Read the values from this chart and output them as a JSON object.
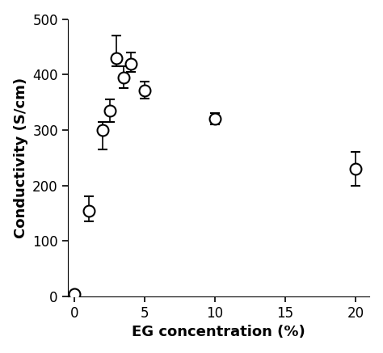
{
  "x": [
    0,
    1,
    2,
    2.5,
    3,
    3.5,
    4,
    5,
    10,
    20
  ],
  "y": [
    5,
    155,
    300,
    335,
    430,
    395,
    420,
    372,
    320,
    230
  ],
  "yerr_low": [
    0,
    20,
    35,
    20,
    15,
    20,
    15,
    15,
    10,
    30
  ],
  "yerr_high": [
    0,
    25,
    15,
    20,
    40,
    20,
    20,
    15,
    10,
    30
  ],
  "xlabel": "EG concentration (%)",
  "ylabel": "Conductivity (S/cm)",
  "xlim": [
    -0.5,
    21
  ],
  "ylim": [
    0,
    500
  ],
  "xticks": [
    0,
    5,
    10,
    15,
    20
  ],
  "yticks": [
    0,
    100,
    200,
    300,
    400,
    500
  ],
  "marker_size": 10,
  "marker_facecolor": "white",
  "marker_edgecolor": "black",
  "marker_edgewidth": 1.5,
  "capsize": 4,
  "elinewidth": 1.2,
  "background_color": "#ffffff",
  "label_fontsize": 13,
  "tick_fontsize": 12
}
